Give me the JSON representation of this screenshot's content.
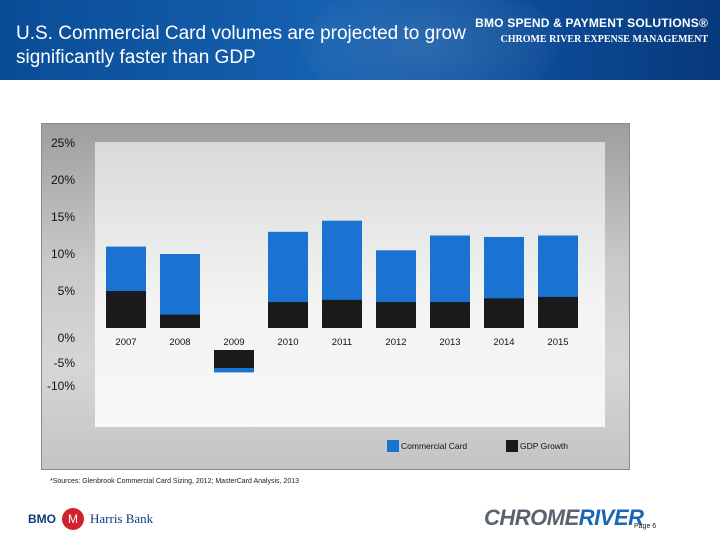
{
  "header": {
    "title": "U.S. Commercial Card volumes are projected to grow significantly faster than GDP",
    "brand_line1": "BMO SPEND & PAYMENT SOLUTIONS®",
    "brand_line2": "CHROME RIVER EXPENSE MANAGEMENT"
  },
  "colors": {
    "header_blue": "#1561b0",
    "commercial_card": "#1a73d1",
    "gdp_growth": "#1a1a1a"
  },
  "chart_data": {
    "type": "bar",
    "categories": [
      "2007",
      "2008",
      "2009",
      "2010",
      "2011",
      "2012",
      "2013",
      "2014",
      "2015"
    ],
    "series": [
      {
        "name": "Commercial Card",
        "values": [
          11,
          10,
          -6,
          13,
          14.5,
          10.5,
          12.5,
          12.3,
          12.5
        ]
      },
      {
        "name": "GDP Growth",
        "values": [
          5,
          1.8,
          -2.8,
          3.5,
          3.8,
          3.5,
          3.5,
          4,
          4.2
        ]
      }
    ],
    "yticks": [
      "25%",
      "20%",
      "15%",
      "10%",
      "5%",
      "0%",
      "-5%",
      "-10%"
    ],
    "ylim": [
      -10,
      25
    ],
    "legend": [
      "Commercial Card",
      "GDP Growth"
    ],
    "legend_position": "bottom-right",
    "grid": false
  },
  "source": "*Sources: Glenbrook Commercial Card Sizing, 2012; MasterCard Analysis, 2013",
  "footer": {
    "bmo_name": "BMO",
    "bank_name": "Harris Bank",
    "chromeriver_a": "CHROME",
    "chromeriver_b": "RIVER",
    "page": "Page 6"
  }
}
